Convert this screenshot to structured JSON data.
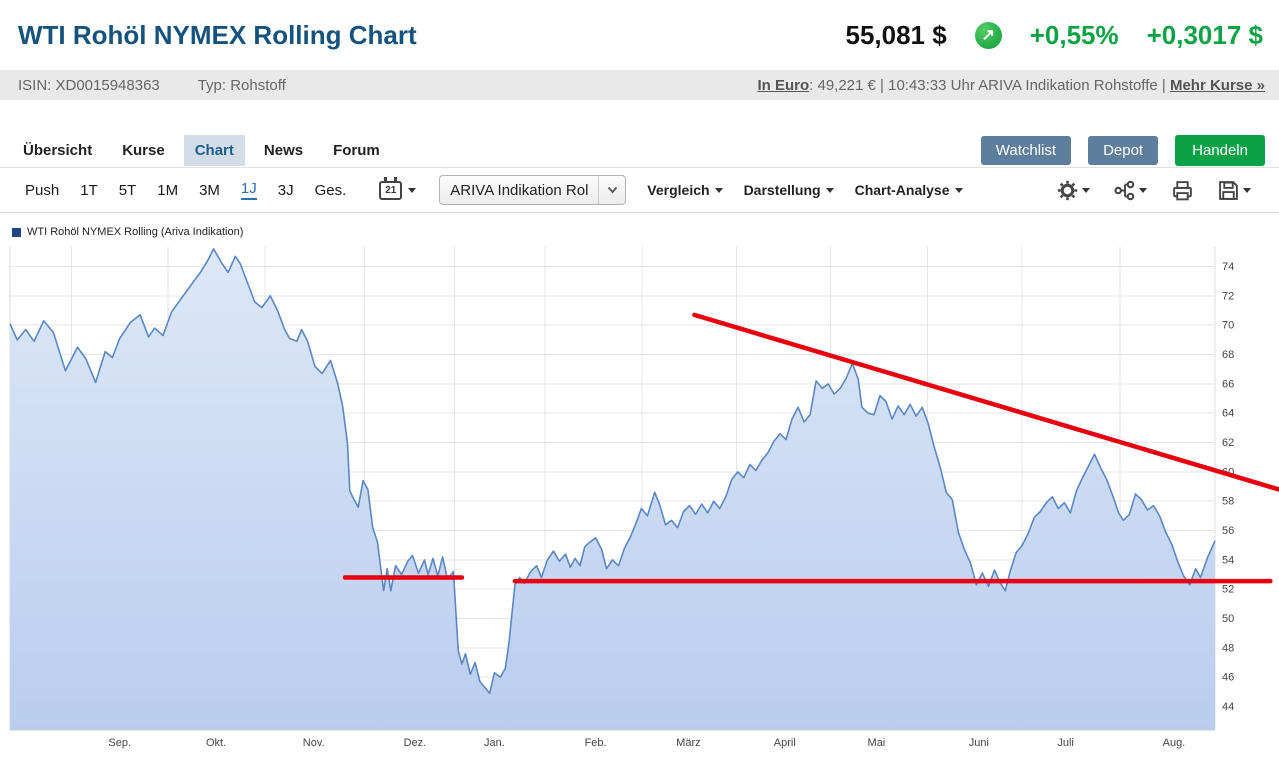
{
  "header": {
    "title": "WTI Rohöl NYMEX Rolling Chart",
    "price": "55,081 $",
    "change_pct": "+0,55%",
    "change_abs": "+0,3017 $",
    "direction_icon": "up-arrow-in-green-circle"
  },
  "info_bar": {
    "isin": "ISIN: XD0015948363",
    "type": "Typ: Rohstoff",
    "euro_link": "In Euro",
    "euro_rest": ": 49,221 € | 10:43:33 Uhr ARIVA Indikation Rohstoffe | ",
    "more_quotes": "Mehr Kurse »"
  },
  "nav": {
    "tabs": [
      {
        "label": "Übersicht",
        "active": false
      },
      {
        "label": "Kurse",
        "active": false
      },
      {
        "label": "Chart",
        "active": true
      },
      {
        "label": "News",
        "active": false
      },
      {
        "label": "Forum",
        "active": false
      }
    ],
    "watchlist": "Watchlist",
    "depot": "Depot",
    "handeln": "Handeln"
  },
  "toolbar": {
    "push": "Push",
    "ranges": [
      "1T",
      "5T",
      "1M",
      "3M",
      "1J",
      "3J",
      "Ges."
    ],
    "active_range": "1J",
    "calendar_day": "21",
    "series_select": "ARIVA Indikation Rol",
    "menu_vergleich": "Vergleich",
    "menu_darstellung": "Darstellung",
    "menu_chartanalyse": "Chart-Analyse",
    "icons": [
      "calendar-icon",
      "settings-gear-icon",
      "share-nodes-icon",
      "printer-icon",
      "save-icon"
    ]
  },
  "legend": {
    "label": "WTI Rohöl NYMEX Rolling (Ariva Indikation)",
    "swatch_color": "#1e4584"
  },
  "colors": {
    "title_blue": "#15537e",
    "positive_green": "#0ba344",
    "button_slate": "#5e7e9e",
    "button_green": "#0aa147",
    "active_tab_bg": "#d3dde7",
    "active_tab_text": "#1b5e8e",
    "active_range_blue": "#2b6fb5",
    "info_bar_bg": "#e9e9e9",
    "annotation_red": "#e8000d",
    "chart_line_blue": "#5b87c5"
  },
  "chart_data": {
    "type": "area",
    "title": "WTI Rohöl NYMEX Rolling (Ariva Indikation)",
    "unit": "USD",
    "timeframe": "1J",
    "ylim": [
      42.4,
      75.4
    ],
    "yticks": [
      44,
      46,
      48,
      50,
      52,
      54,
      56,
      58,
      60,
      62,
      64,
      66,
      68,
      70,
      72,
      74
    ],
    "grid": true,
    "legend_position": "top-left",
    "y_axis_side": "right",
    "x_months": [
      {
        "label": "Sep.",
        "f": 0.091
      },
      {
        "label": "Okt.",
        "f": 0.171
      },
      {
        "label": "Nov.",
        "f": 0.252
      },
      {
        "label": "Dez.",
        "f": 0.336
      },
      {
        "label": "Jan.",
        "f": 0.402
      },
      {
        "label": "Feb.",
        "f": 0.486
      },
      {
        "label": "März",
        "f": 0.563
      },
      {
        "label": "April",
        "f": 0.643
      },
      {
        "label": "Mai",
        "f": 0.719
      },
      {
        "label": "Juni",
        "f": 0.804
      },
      {
        "label": "Juli",
        "f": 0.876
      },
      {
        "label": "Aug.",
        "f": 0.966
      }
    ],
    "style": {
      "line_color": "#5b87c5",
      "fill_top": "#dde8f8",
      "fill_bottom": "#b9cdee",
      "grid_color": "#e5e5e5",
      "border_color": "#cfcfcf",
      "annotation_color": "#e8000d",
      "annotation_width": 4.5
    },
    "series": [
      {
        "name": "WTI Rohöl NYMEX Rolling (Ariva Indikation)",
        "points": [
          [
            0.0,
            70.1
          ],
          [
            0.006,
            69.0
          ],
          [
            0.013,
            69.7
          ],
          [
            0.02,
            68.9
          ],
          [
            0.028,
            70.3
          ],
          [
            0.036,
            69.5
          ],
          [
            0.046,
            66.9
          ],
          [
            0.056,
            68.5
          ],
          [
            0.063,
            67.7
          ],
          [
            0.071,
            66.1
          ],
          [
            0.079,
            68.2
          ],
          [
            0.085,
            67.8
          ],
          [
            0.091,
            69.1
          ],
          [
            0.1,
            70.2
          ],
          [
            0.108,
            70.7
          ],
          [
            0.115,
            69.2
          ],
          [
            0.12,
            69.8
          ],
          [
            0.127,
            69.3
          ],
          [
            0.134,
            70.9
          ],
          [
            0.141,
            71.7
          ],
          [
            0.149,
            72.6
          ],
          [
            0.158,
            73.6
          ],
          [
            0.164,
            74.4
          ],
          [
            0.169,
            75.2
          ],
          [
            0.176,
            74.2
          ],
          [
            0.181,
            73.6
          ],
          [
            0.187,
            74.7
          ],
          [
            0.191,
            74.2
          ],
          [
            0.198,
            72.7
          ],
          [
            0.203,
            71.6
          ],
          [
            0.209,
            71.2
          ],
          [
            0.216,
            72.0
          ],
          [
            0.222,
            71.0
          ],
          [
            0.228,
            69.7
          ],
          [
            0.232,
            69.1
          ],
          [
            0.238,
            68.9
          ],
          [
            0.242,
            69.7
          ],
          [
            0.247,
            68.9
          ],
          [
            0.253,
            67.2
          ],
          [
            0.259,
            66.7
          ],
          [
            0.266,
            67.6
          ],
          [
            0.272,
            66.0
          ],
          [
            0.276,
            64.5
          ],
          [
            0.28,
            62.0
          ],
          [
            0.282,
            58.7
          ],
          [
            0.285,
            58.2
          ],
          [
            0.289,
            57.6
          ],
          [
            0.293,
            59.4
          ],
          [
            0.297,
            58.8
          ],
          [
            0.301,
            56.2
          ],
          [
            0.305,
            55.2
          ],
          [
            0.31,
            51.9
          ],
          [
            0.313,
            53.4
          ],
          [
            0.316,
            51.9
          ],
          [
            0.32,
            53.6
          ],
          [
            0.325,
            53.0
          ],
          [
            0.33,
            53.9
          ],
          [
            0.334,
            54.3
          ],
          [
            0.339,
            53.1
          ],
          [
            0.344,
            54.0
          ],
          [
            0.347,
            53.0
          ],
          [
            0.351,
            54.1
          ],
          [
            0.355,
            52.9
          ],
          [
            0.359,
            54.2
          ],
          [
            0.363,
            52.7
          ],
          [
            0.368,
            53.2
          ],
          [
            0.372,
            47.8
          ],
          [
            0.375,
            46.9
          ],
          [
            0.378,
            47.6
          ],
          [
            0.382,
            46.2
          ],
          [
            0.386,
            47.0
          ],
          [
            0.39,
            45.7
          ],
          [
            0.395,
            45.2
          ],
          [
            0.398,
            44.9
          ],
          [
            0.402,
            46.3
          ],
          [
            0.407,
            46.0
          ],
          [
            0.411,
            46.6
          ],
          [
            0.414,
            48.3
          ],
          [
            0.419,
            52.3
          ],
          [
            0.423,
            52.8
          ],
          [
            0.427,
            52.4
          ],
          [
            0.432,
            53.2
          ],
          [
            0.437,
            53.6
          ],
          [
            0.441,
            52.8
          ],
          [
            0.446,
            54.0
          ],
          [
            0.451,
            54.6
          ],
          [
            0.456,
            53.9
          ],
          [
            0.461,
            54.4
          ],
          [
            0.465,
            53.5
          ],
          [
            0.469,
            54.1
          ],
          [
            0.473,
            53.6
          ],
          [
            0.477,
            54.9
          ],
          [
            0.481,
            55.2
          ],
          [
            0.486,
            55.5
          ],
          [
            0.491,
            54.7
          ],
          [
            0.495,
            53.4
          ],
          [
            0.5,
            54.0
          ],
          [
            0.505,
            53.6
          ],
          [
            0.51,
            54.8
          ],
          [
            0.515,
            55.6
          ],
          [
            0.52,
            56.6
          ],
          [
            0.524,
            57.5
          ],
          [
            0.529,
            57.0
          ],
          [
            0.535,
            58.6
          ],
          [
            0.539,
            57.8
          ],
          [
            0.544,
            56.4
          ],
          [
            0.549,
            56.7
          ],
          [
            0.554,
            56.2
          ],
          [
            0.559,
            57.3
          ],
          [
            0.564,
            57.7
          ],
          [
            0.569,
            57.1
          ],
          [
            0.574,
            57.8
          ],
          [
            0.579,
            57.2
          ],
          [
            0.584,
            58.0
          ],
          [
            0.589,
            57.5
          ],
          [
            0.594,
            58.3
          ],
          [
            0.599,
            59.5
          ],
          [
            0.604,
            60.0
          ],
          [
            0.609,
            59.6
          ],
          [
            0.614,
            60.5
          ],
          [
            0.619,
            60.1
          ],
          [
            0.624,
            60.8
          ],
          [
            0.629,
            61.3
          ],
          [
            0.634,
            62.1
          ],
          [
            0.639,
            62.6
          ],
          [
            0.644,
            62.2
          ],
          [
            0.649,
            63.6
          ],
          [
            0.654,
            64.4
          ],
          [
            0.659,
            63.4
          ],
          [
            0.664,
            63.9
          ],
          [
            0.669,
            66.2
          ],
          [
            0.674,
            65.7
          ],
          [
            0.679,
            66.0
          ],
          [
            0.684,
            65.3
          ],
          [
            0.689,
            65.7
          ],
          [
            0.694,
            66.4
          ],
          [
            0.699,
            67.4
          ],
          [
            0.704,
            66.3
          ],
          [
            0.707,
            64.4
          ],
          [
            0.712,
            64.0
          ],
          [
            0.717,
            63.9
          ],
          [
            0.722,
            65.2
          ],
          [
            0.727,
            64.8
          ],
          [
            0.732,
            63.6
          ],
          [
            0.737,
            64.5
          ],
          [
            0.742,
            63.9
          ],
          [
            0.747,
            64.6
          ],
          [
            0.752,
            63.8
          ],
          [
            0.757,
            64.4
          ],
          [
            0.762,
            63.3
          ],
          [
            0.767,
            61.7
          ],
          [
            0.772,
            60.3
          ],
          [
            0.777,
            58.6
          ],
          [
            0.782,
            58.1
          ],
          [
            0.787,
            55.9
          ],
          [
            0.792,
            54.7
          ],
          [
            0.797,
            53.8
          ],
          [
            0.802,
            52.3
          ],
          [
            0.807,
            53.1
          ],
          [
            0.812,
            52.2
          ],
          [
            0.817,
            53.3
          ],
          [
            0.822,
            52.4
          ],
          [
            0.826,
            51.9
          ],
          [
            0.83,
            53.2
          ],
          [
            0.835,
            54.5
          ],
          [
            0.84,
            55.0
          ],
          [
            0.845,
            55.8
          ],
          [
            0.85,
            56.9
          ],
          [
            0.855,
            57.3
          ],
          [
            0.86,
            57.9
          ],
          [
            0.865,
            58.3
          ],
          [
            0.87,
            57.5
          ],
          [
            0.875,
            57.9
          ],
          [
            0.88,
            57.2
          ],
          [
            0.885,
            58.7
          ],
          [
            0.89,
            59.6
          ],
          [
            0.895,
            60.4
          ],
          [
            0.9,
            61.2
          ],
          [
            0.905,
            60.3
          ],
          [
            0.91,
            59.5
          ],
          [
            0.915,
            58.4
          ],
          [
            0.92,
            57.2
          ],
          [
            0.924,
            56.7
          ],
          [
            0.929,
            57.1
          ],
          [
            0.934,
            58.5
          ],
          [
            0.939,
            58.1
          ],
          [
            0.944,
            57.4
          ],
          [
            0.949,
            57.7
          ],
          [
            0.954,
            57.0
          ],
          [
            0.959,
            55.9
          ],
          [
            0.964,
            55.1
          ],
          [
            0.969,
            53.9
          ],
          [
            0.974,
            52.9
          ],
          [
            0.979,
            52.3
          ],
          [
            0.984,
            53.4
          ],
          [
            0.988,
            52.8
          ],
          [
            0.994,
            54.2
          ],
          [
            1.0,
            55.3
          ]
        ]
      }
    ],
    "annotations": [
      {
        "name": "descending-trendline",
        "type": "line",
        "from": [
          0.568,
          70.7
        ],
        "to": [
          1.053,
          58.8
        ]
      },
      {
        "name": "support-line-short",
        "type": "line",
        "from": [
          0.278,
          52.8
        ],
        "to": [
          0.375,
          52.8
        ]
      },
      {
        "name": "support-line-long",
        "type": "line",
        "from": [
          0.419,
          52.55
        ],
        "to": [
          1.046,
          52.55
        ]
      }
    ]
  }
}
